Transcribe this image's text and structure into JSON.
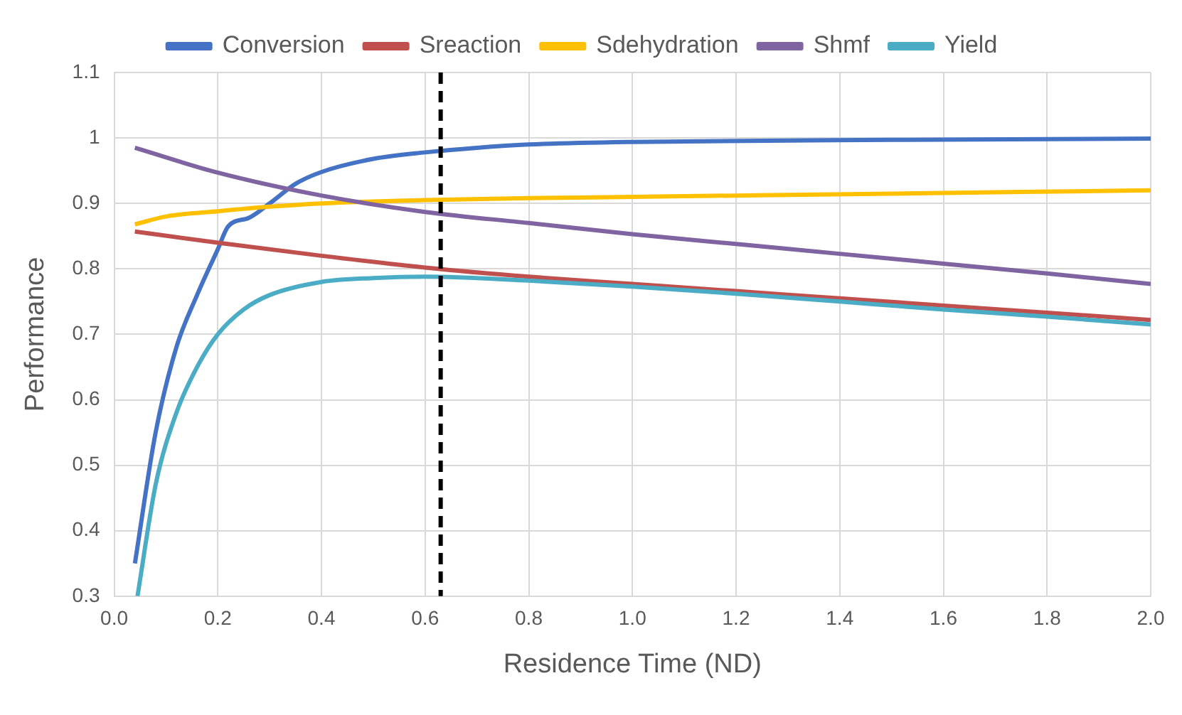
{
  "chart_data": {
    "type": "line",
    "xlabel": "Residence Time (ND)",
    "ylabel": "Performance",
    "xlim": [
      0,
      2
    ],
    "xticks": [
      {
        "value": 0,
        "label": "0.0"
      },
      0.2,
      0.4,
      0.6,
      0.8,
      {
        "value": 1,
        "label": "1.0"
      },
      1.2,
      1.4,
      1.6,
      1.8,
      {
        "value": 2,
        "label": "2.0"
      }
    ],
    "ylim": [
      0.3,
      1.1
    ],
    "yticks": [
      0.3,
      0.4,
      0.5,
      0.6,
      0.7,
      0.8,
      0.9,
      1,
      1.1
    ],
    "grid": true,
    "legend": "top",
    "marker": "none",
    "line_style": "solid",
    "ref_lines": [
      {
        "axis": "x",
        "value": 0.63,
        "label": null,
        "color": "#000000",
        "line_style": "dashed"
      }
    ],
    "series": [
      {
        "name": "Conversion",
        "color": "#4472c4",
        "x": [
          0.04,
          0.08,
          0.12,
          0.16,
          0.2,
          0.22,
          0.26,
          0.3,
          0.35,
          0.4,
          0.5,
          0.6,
          0.7,
          0.8,
          1.0,
          1.5,
          2.0
        ],
        "values": [
          0.35,
          0.55,
          0.68,
          0.76,
          0.83,
          0.865,
          0.878,
          0.9,
          0.93,
          0.948,
          0.968,
          0.978,
          0.985,
          0.99,
          0.994,
          0.997,
          0.999
        ]
      },
      {
        "name": "Sreaction",
        "color": "#c0504d",
        "x": [
          0.04,
          0.2,
          0.4,
          0.6,
          0.8,
          1.0,
          1.2,
          1.4,
          1.6,
          1.8,
          2.0
        ],
        "values": [
          0.857,
          0.84,
          0.82,
          0.802,
          0.788,
          0.777,
          0.766,
          0.755,
          0.744,
          0.733,
          0.722
        ]
      },
      {
        "name": "Sdehydration",
        "color": "#ffc000",
        "x": [
          0.04,
          0.1,
          0.2,
          0.3,
          0.4,
          0.6,
          0.8,
          1.0,
          1.5,
          2.0
        ],
        "values": [
          0.868,
          0.88,
          0.888,
          0.895,
          0.9,
          0.905,
          0.908,
          0.91,
          0.915,
          0.92
        ]
      },
      {
        "name": "Shmf",
        "color": "#8064a2",
        "x": [
          0.04,
          0.2,
          0.4,
          0.6,
          0.8,
          1.0,
          1.2,
          1.4,
          1.6,
          1.8,
          2.0
        ],
        "values": [
          0.985,
          0.947,
          0.912,
          0.887,
          0.87,
          0.853,
          0.838,
          0.823,
          0.808,
          0.793,
          0.777
        ]
      },
      {
        "name": "Yield",
        "color": "#4bacc6",
        "x": [
          0.045,
          0.08,
          0.12,
          0.16,
          0.2,
          0.25,
          0.3,
          0.4,
          0.5,
          0.6,
          0.8,
          1.0,
          1.2,
          1.4,
          1.6,
          1.8,
          2.0
        ],
        "values": [
          0.3,
          0.47,
          0.58,
          0.65,
          0.7,
          0.738,
          0.76,
          0.78,
          0.786,
          0.788,
          0.782,
          0.773,
          0.762,
          0.75,
          0.738,
          0.727,
          0.715
        ]
      }
    ]
  }
}
